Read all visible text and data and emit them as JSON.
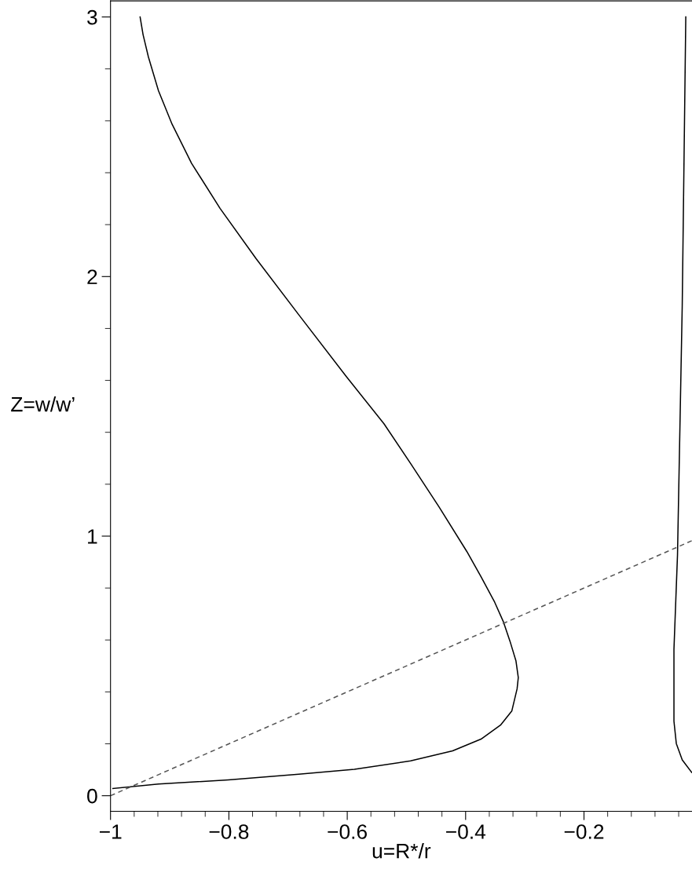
{
  "chart_data": {
    "type": "line",
    "xlabel": "u=R*/r",
    "ylabel": "Z=w/w’",
    "xlim": [
      -1,
      -0.0175
    ],
    "ylim": [
      -0.06,
      3.062
    ],
    "xticks": [
      {
        "value": -1,
        "label": "−1"
      },
      {
        "value": -0.8,
        "label": "−0.8"
      },
      {
        "value": -0.6,
        "label": "−0.6"
      },
      {
        "value": -0.4,
        "label": "−0.4"
      },
      {
        "value": -0.2,
        "label": "−0.2"
      }
    ],
    "yticks": [
      0,
      1,
      2,
      3
    ],
    "grid": false,
    "legend": false,
    "marker": "none",
    "series": [
      {
        "color": "#000000",
        "line_style": "solid",
        "x": [
          -0.996,
          -0.919,
          -0.801,
          -0.682,
          -0.588,
          -0.493,
          -0.422,
          -0.374,
          -0.341,
          -0.322,
          -0.313,
          -0.311,
          -0.315,
          -0.325,
          -0.336,
          -0.351,
          -0.374,
          -0.398,
          -0.445,
          -0.493,
          -0.538,
          -0.602,
          -0.682,
          -0.754,
          -0.815,
          -0.863,
          -0.896,
          -0.919,
          -0.936,
          -0.945,
          -0.95
        ],
        "values": [
          0.028,
          0.045,
          0.061,
          0.083,
          0.102,
          0.134,
          0.173,
          0.218,
          0.272,
          0.326,
          0.412,
          0.455,
          0.52,
          0.595,
          0.669,
          0.746,
          0.844,
          0.941,
          1.113,
          1.28,
          1.433,
          1.616,
          1.853,
          2.069,
          2.263,
          2.436,
          2.587,
          2.716,
          2.846,
          2.932,
          3.0
        ]
      },
      {
        "color": "#000000",
        "line_style": "solid",
        "x": [
          -0.028,
          -0.034,
          -0.042,
          -0.048,
          -0.048,
          -0.044,
          -0.034,
          -0.018
        ],
        "values": [
          3.0,
          1.888,
          0.927,
          0.564,
          0.287,
          0.201,
          0.138,
          0.09
        ]
      },
      {
        "color": "#555555",
        "line_style": "dashed",
        "x": [
          -1,
          -0.018
        ],
        "values": [
          0,
          0.982
        ]
      }
    ]
  }
}
